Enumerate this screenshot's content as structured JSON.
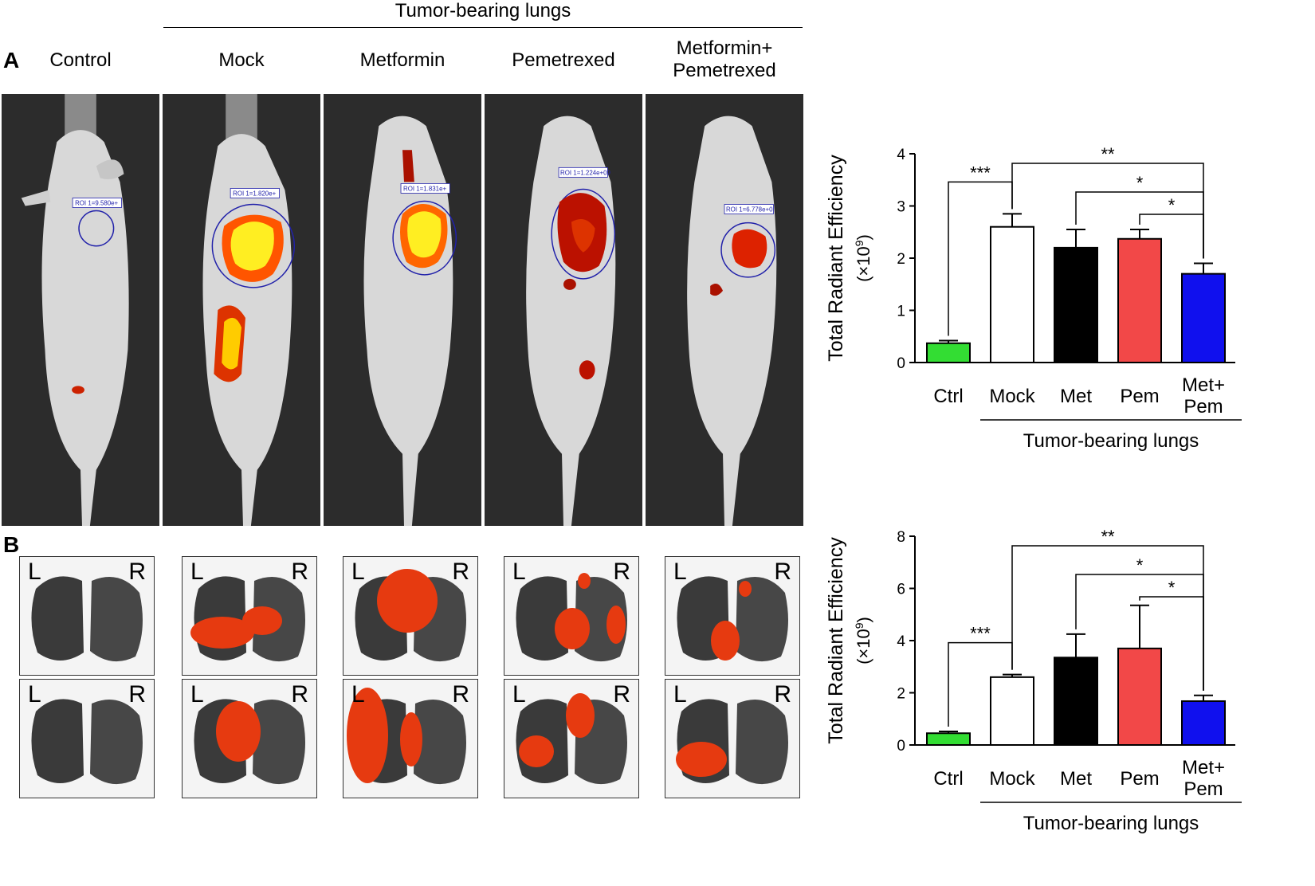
{
  "figure": {
    "top_group_label": "Tumor-bearing lungs",
    "panel_a_letter": "A",
    "panel_b_letter": "B",
    "columns": [
      {
        "label": "Control"
      },
      {
        "label": "Mock"
      },
      {
        "label": "Metformin"
      },
      {
        "label": "Pemetrexed"
      },
      {
        "label": "Metformin+",
        "label2": "Pemetrexed"
      }
    ],
    "roi_labels": [
      "ROI 1=9.580e+",
      "ROI 1=1.820e+",
      "ROI 1=1.831e+",
      "ROI 1=1.224e+09",
      "ROI 1=6.778e+0"
    ],
    "lung_left": "L",
    "lung_right": "R"
  },
  "chart_data": [
    {
      "type": "bar",
      "panel": "A",
      "title": "",
      "ylabel": "Total Radiant Efficiency",
      "ylabel_unit": "(×10",
      "ylabel_exp": "9",
      "ylabel_close": ")",
      "ylim": [
        0,
        4
      ],
      "yticks": [
        0,
        1,
        2,
        3,
        4
      ],
      "categories": [
        "Ctrl",
        "Mock",
        "Met",
        "Pem",
        "Met+|Pem"
      ],
      "values": [
        0.37,
        2.6,
        2.2,
        2.37,
        1.7
      ],
      "errors": [
        0.05,
        0.25,
        0.35,
        0.18,
        0.2
      ],
      "colors": [
        "#33dd33",
        "#ffffff",
        "#000000",
        "#f24848",
        "#1010ee"
      ],
      "group_label": "Tumor-bearing lungs",
      "significance": [
        {
          "from": 0,
          "to": 1,
          "label": "***"
        },
        {
          "from": 1,
          "to": 4,
          "label": "**"
        },
        {
          "from": 2,
          "to": 4,
          "label": "*"
        },
        {
          "from": 3,
          "to": 4,
          "label": "*"
        }
      ]
    },
    {
      "type": "bar",
      "panel": "B",
      "title": "",
      "ylabel": "Total Radiant Efficiency",
      "ylabel_unit": "(×10",
      "ylabel_exp": "9",
      "ylabel_close": ")",
      "ylim": [
        0,
        8
      ],
      "yticks": [
        0,
        2,
        4,
        6,
        8
      ],
      "categories": [
        "Ctrl",
        "Mock",
        "Met",
        "Pem",
        "Met+|Pem"
      ],
      "values": [
        0.45,
        2.6,
        3.35,
        3.7,
        1.68
      ],
      "errors": [
        0.07,
        0.1,
        0.9,
        1.65,
        0.22
      ],
      "colors": [
        "#33dd33",
        "#ffffff",
        "#000000",
        "#f24848",
        "#1010ee"
      ],
      "group_label": "Tumor-bearing lungs",
      "significance": [
        {
          "from": 0,
          "to": 1,
          "label": "***"
        },
        {
          "from": 1,
          "to": 4,
          "label": "**"
        },
        {
          "from": 2,
          "to": 4,
          "label": "*"
        },
        {
          "from": 3,
          "to": 4,
          "label": "*"
        }
      ]
    }
  ]
}
